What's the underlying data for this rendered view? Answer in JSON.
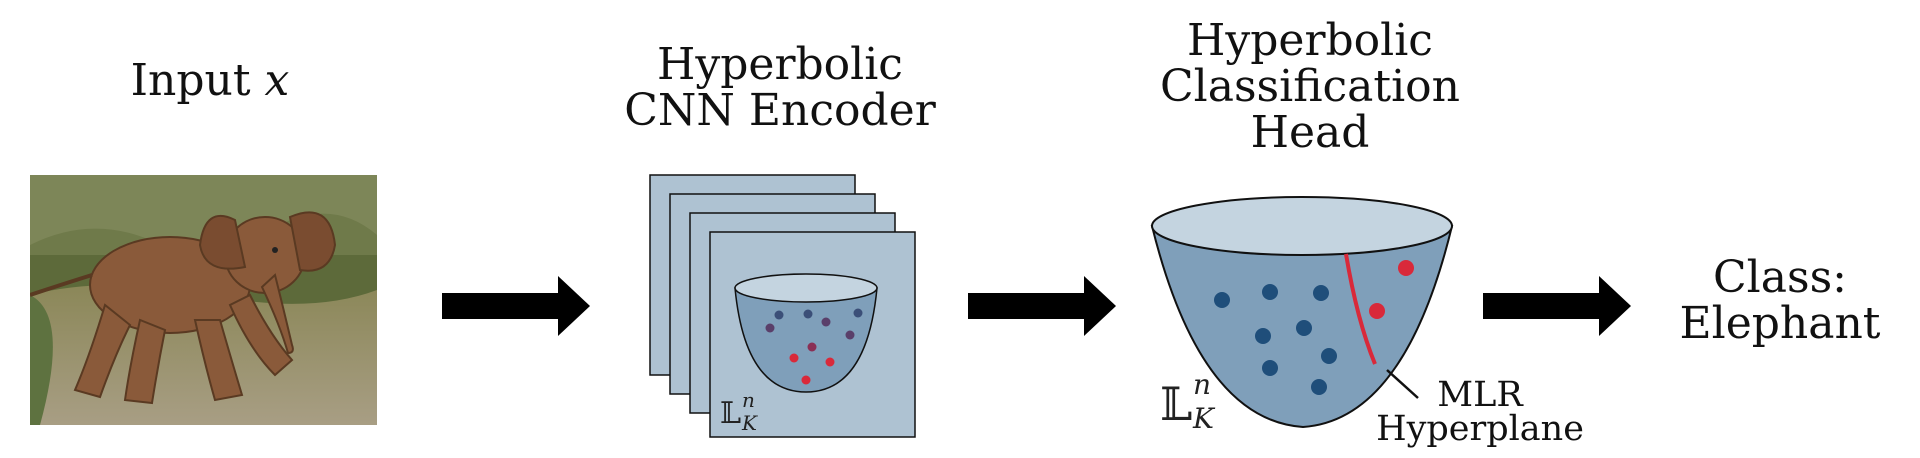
{
  "labels": {
    "input": "Input",
    "input_var": "x",
    "encoder_line1": "Hyperbolic",
    "encoder_line2": "CNN Encoder",
    "head_line1": "Hyperbolic",
    "head_line2": "Classification",
    "head_line3": "Head",
    "class_line1": "Class:",
    "class_line2": "Elephant",
    "mlr_line1": "MLR",
    "mlr_line2": "Hyperplane",
    "space_small": "𝕃",
    "space_small_sup": "n",
    "space_small_sub": "K",
    "space_large": "𝕃",
    "space_large_sup": "n",
    "space_large_sub": "K"
  },
  "colors": {
    "panel_fill": "#aec2d2",
    "panel_stroke": "#111111",
    "cone_top": "#c4d4e0",
    "cone_body": "#7f9fba",
    "dot_blue": "#1f4e7a",
    "dot_red": "#d9293a",
    "dot_purple": "#5a3f6a",
    "hyperplane": "#d9293a",
    "arrow": "#000000"
  },
  "icons": [
    "elephant-photo",
    "arrow-right-icon"
  ]
}
